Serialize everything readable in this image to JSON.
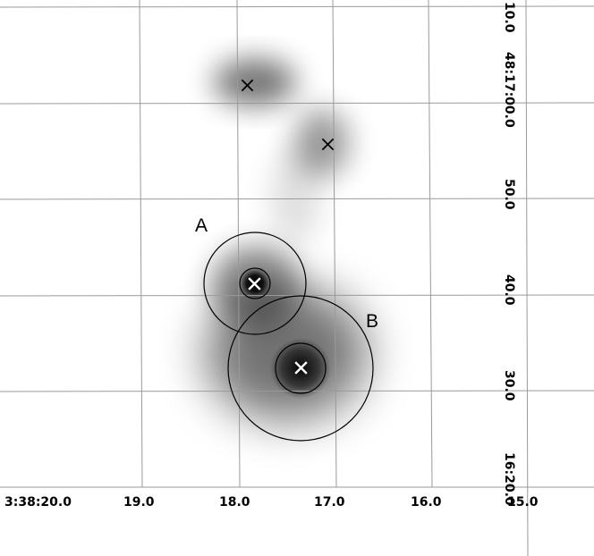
{
  "ra_ticks": [
    "3:38:20.0",
    "19.0",
    "18.0",
    "17.0",
    "16.0",
    "15.0"
  ],
  "dec_ticks": [
    "48:17:00.0",
    "50.0",
    "40.0",
    "30.0",
    "16:20.0"
  ],
  "dec_top_cut": "10.0",
  "source_labels": {
    "a": "A",
    "b": "B"
  },
  "markers": [
    "x-marker-top-left",
    "x-marker-top-right",
    "x-marker-a",
    "x-marker-b"
  ],
  "colors": {
    "grid": "#9a9a9a",
    "circle": "#000000",
    "marker_dark": "#000000",
    "marker_light": "#ffffff",
    "emission": "#000000"
  }
}
